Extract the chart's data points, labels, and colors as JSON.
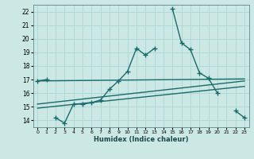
{
  "title": "",
  "xlabel": "Humidex (Indice chaleur)",
  "ylabel": "",
  "background_color": "#cce8e4",
  "grid_color": "#b0d8d4",
  "line_color": "#1a6b6b",
  "xlim": [
    -0.5,
    23.5
  ],
  "ylim": [
    13.5,
    22.5
  ],
  "xticks": [
    0,
    1,
    2,
    3,
    4,
    5,
    6,
    7,
    8,
    9,
    10,
    11,
    12,
    13,
    14,
    15,
    16,
    17,
    18,
    19,
    20,
    21,
    22,
    23
  ],
  "yticks": [
    14,
    15,
    16,
    17,
    18,
    19,
    20,
    21,
    22
  ],
  "series": [
    {
      "x": [
        0,
        1,
        2,
        3,
        4,
        5,
        6,
        7,
        8,
        9,
        10,
        11,
        12,
        13,
        15,
        16,
        17,
        18,
        19,
        20,
        22,
        23
      ],
      "y": [
        16.9,
        17.0,
        14.2,
        13.8,
        15.2,
        15.2,
        15.3,
        15.5,
        16.3,
        16.9,
        17.6,
        19.3,
        18.8,
        19.3,
        22.2,
        19.7,
        19.2,
        17.5,
        17.1,
        16.0,
        14.7,
        14.2
      ],
      "marker": "+",
      "markersize": 4,
      "linewidth": 1.0,
      "segments": [
        {
          "x": [
            0,
            1
          ],
          "y": [
            16.9,
            17.0
          ]
        },
        {
          "x": [
            2,
            3,
            4,
            5,
            6,
            7,
            8,
            9,
            10,
            11,
            12,
            13
          ],
          "y": [
            14.2,
            13.8,
            15.2,
            15.2,
            15.3,
            15.5,
            16.3,
            16.9,
            17.6,
            19.3,
            18.8,
            19.3
          ]
        },
        {
          "x": [
            15,
            16,
            17,
            18,
            19,
            20
          ],
          "y": [
            22.2,
            19.7,
            19.2,
            17.5,
            17.1,
            16.0
          ]
        },
        {
          "x": [
            22,
            23
          ],
          "y": [
            14.7,
            14.2
          ]
        }
      ]
    },
    {
      "x": [
        0,
        23
      ],
      "y": [
        14.9,
        16.5
      ],
      "marker": null,
      "linewidth": 1.0
    },
    {
      "x": [
        0,
        23
      ],
      "y": [
        15.2,
        16.9
      ],
      "marker": null,
      "linewidth": 1.0
    },
    {
      "x": [
        0,
        23
      ],
      "y": [
        16.9,
        17.05
      ],
      "marker": null,
      "linewidth": 1.0
    }
  ]
}
